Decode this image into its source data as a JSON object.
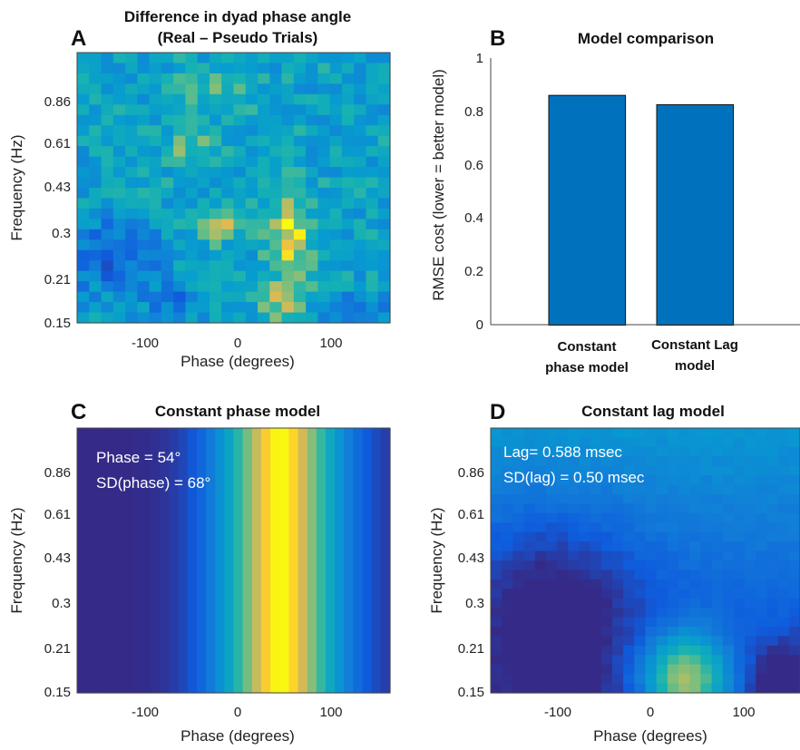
{
  "panels": {
    "A": {
      "letter": "A",
      "title_line1": "Difference in dyad phase angle",
      "title_line2": "(Real – Pseudo Trials)"
    },
    "B": {
      "letter": "B",
      "title": "Model comparison"
    },
    "C": {
      "letter": "C",
      "title": "Constant phase model",
      "annotation_line1": "Phase = 54°",
      "annotation_line2": "SD(phase) = 68°"
    },
    "D": {
      "letter": "D",
      "title": "Constant lag model",
      "annotation_line1": "Lag= 0.588 msec",
      "annotation_line2": "SD(lag) = 0.50 msec"
    }
  },
  "heatmap_axes": {
    "xlabel": "Phase (degrees)",
    "ylabel": "Frequency (Hz)",
    "xticks": [
      "-100",
      "0",
      "100"
    ],
    "yticks": [
      "0.86",
      "0.61",
      "0.43",
      "0.3",
      "0.21",
      "0.15"
    ]
  },
  "bar_axes": {
    "ylabel": "RMSE cost (lower = better model)",
    "yticks": [
      "0",
      "0.2",
      "0.4",
      "0.6",
      "0.8",
      "1"
    ],
    "cat1_line1": "Constant",
    "cat1_line2": "phase model",
    "cat2_line1": "Constant Lag",
    "cat2_line2": "model"
  },
  "colors": {
    "bar": "#0072bd",
    "colormap": "parula"
  },
  "chart_data": [
    {
      "type": "heatmap",
      "panel": "A",
      "title": "Difference in dyad phase angle (Real – Pseudo Trials)",
      "xlabel": "Phase (degrees)",
      "ylabel": "Frequency (Hz)",
      "xlim": [
        -175,
        165
      ],
      "frequency_scale": "log",
      "yticks": [
        0.15,
        0.21,
        0.3,
        0.43,
        0.61,
        0.86
      ],
      "description_hot_spots": [
        {
          "phase": 60,
          "frequency": 0.3,
          "level": "high"
        },
        {
          "phase": -20,
          "frequency": 0.3,
          "level": "high"
        },
        {
          "phase": 45,
          "frequency": 0.16,
          "level": "high"
        },
        {
          "phase": -50,
          "frequency": 0.61,
          "level": "medium"
        }
      ]
    },
    {
      "type": "bar",
      "panel": "B",
      "title": "Model comparison",
      "categories": [
        "Constant phase model",
        "Constant Lag model"
      ],
      "values": [
        0.86,
        0.825
      ],
      "ylabel": "RMSE cost (lower = better model)",
      "ylim": [
        0,
        1
      ]
    },
    {
      "type": "heatmap",
      "panel": "C",
      "title": "Constant phase model",
      "xlabel": "Phase (degrees)",
      "ylabel": "Frequency (Hz)",
      "phase_mean_deg": 54,
      "phase_sd_deg": 68
    },
    {
      "type": "heatmap",
      "panel": "D",
      "title": "Constant lag model",
      "xlabel": "Phase (degrees)",
      "ylabel": "Frequency (Hz)",
      "lag_msec": 0.588,
      "lag_sd_msec": 0.5
    }
  ]
}
